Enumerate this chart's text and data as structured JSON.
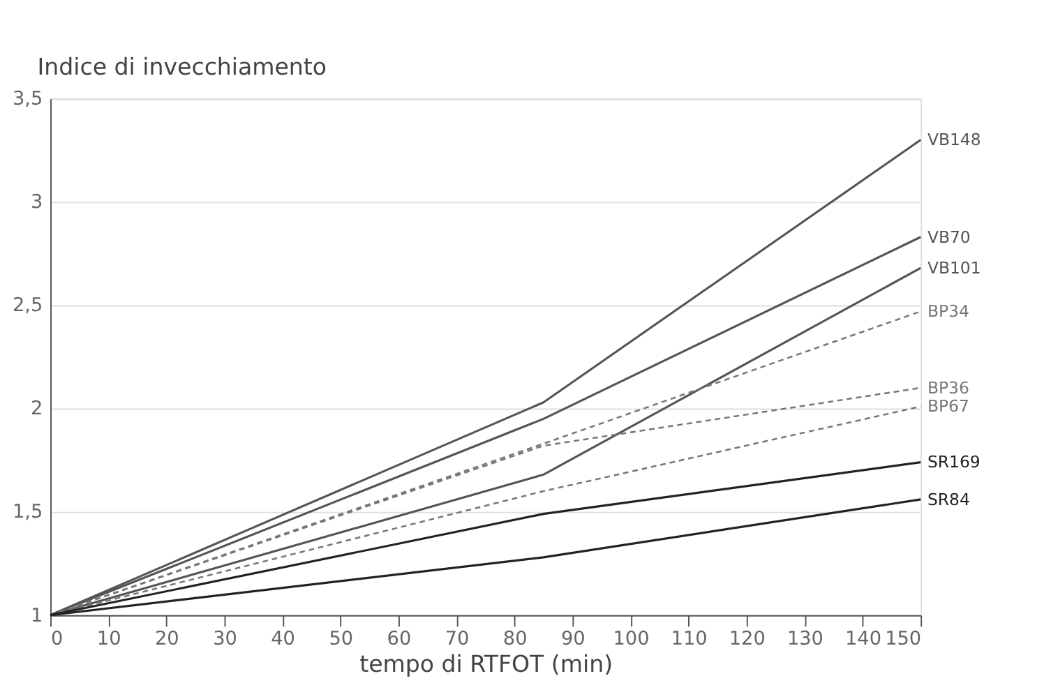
{
  "chart_data": {
    "type": "line",
    "ylabel": "Indice di invecchiamento",
    "xlabel": "tempo di RTFOT (min)",
    "xlim": [
      0,
      150
    ],
    "xticks": [
      0,
      10,
      20,
      30,
      40,
      50,
      60,
      70,
      80,
      90,
      100,
      110,
      120,
      130,
      140,
      150
    ],
    "ylim": [
      1,
      3.5
    ],
    "yticks": [
      1,
      {
        "value": 1.5,
        "label": "1,5"
      },
      2,
      {
        "value": 2.5,
        "label": "2,5"
      },
      3,
      {
        "value": 3.5,
        "label": "3,5"
      }
    ],
    "grid": "y",
    "marker": "none",
    "series": [
      {
        "name": "VB148",
        "color": "#555555",
        "line_style": "solid",
        "x": [
          0,
          85,
          150
        ],
        "values": [
          1,
          2.03,
          3.3
        ]
      },
      {
        "name": "VB70",
        "color": "#555555",
        "line_style": "solid",
        "x": [
          0,
          85,
          150
        ],
        "values": [
          1,
          1.95,
          2.83
        ]
      },
      {
        "name": "VB101",
        "color": "#555555",
        "line_style": "solid",
        "x": [
          0,
          85,
          150
        ],
        "values": [
          1,
          1.68,
          2.68
        ]
      },
      {
        "name": "BP34",
        "color": "#777777",
        "line_style": "dashed",
        "x": [
          0,
          85,
          150
        ],
        "values": [
          1,
          1.83,
          2.47
        ]
      },
      {
        "name": "BP36",
        "color": "#777777",
        "line_style": "dashed",
        "x": [
          0,
          85,
          150
        ],
        "values": [
          1,
          1.82,
          2.1
        ]
      },
      {
        "name": "BP67",
        "color": "#777777",
        "line_style": "dashed",
        "x": [
          0,
          85,
          150
        ],
        "values": [
          1,
          1.6,
          2.01
        ]
      },
      {
        "name": "SR169",
        "color": "#222222",
        "line_style": "solid",
        "x": [
          0,
          85,
          150
        ],
        "values": [
          1,
          1.49,
          1.74
        ]
      },
      {
        "name": "SR84",
        "color": "#222222",
        "line_style": "solid",
        "x": [
          0,
          85,
          150
        ],
        "values": [
          1,
          1.28,
          1.56
        ]
      }
    ]
  }
}
